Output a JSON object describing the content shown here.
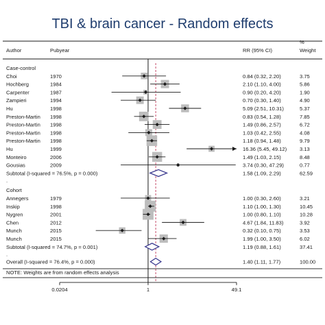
{
  "chart_data": {
    "type": "forest",
    "title": "TBI & brain cancer - Random effects",
    "headers": {
      "author": "Author",
      "pubyear": "Pubyear",
      "effect": "RR (95% CI)",
      "weight_top": "%",
      "weight": "Weight"
    },
    "x_scale": "log",
    "x_range": [
      0.0204,
      49.1
    ],
    "x_ticks": [
      "0.0204",
      "1",
      "49.1"
    ],
    "null_value": 1,
    "overall_value": 1.4,
    "groups": [
      {
        "label": "Case-control",
        "studies": [
          {
            "author": "Choi",
            "year": "1970",
            "rr": 0.84,
            "lo": 0.32,
            "hi": 2.2,
            "ci_text": "0.84 (0.32, 2.20)",
            "weight": "3.75"
          },
          {
            "author": "Hochberg",
            "year": "1984",
            "rr": 2.1,
            "lo": 1.1,
            "hi": 4.0,
            "ci_text": "2.10 (1.10, 4.00)",
            "weight": "5.86"
          },
          {
            "author": "Carpenter",
            "year": "1987",
            "rr": 0.9,
            "lo": 0.2,
            "hi": 4.2,
            "ci_text": "0.90 (0.20, 4.20)",
            "weight": "1.90"
          },
          {
            "author": "Zampieri",
            "year": "1994",
            "rr": 0.7,
            "lo": 0.3,
            "hi": 1.4,
            "ci_text": "0.70 (0.30, 1.40)",
            "weight": "4.90"
          },
          {
            "author": "Hu",
            "year": "1998",
            "rr": 5.09,
            "lo": 2.51,
            "hi": 10.31,
            "ci_text": "5.09 (2.51, 10.31)",
            "weight": "5.37"
          },
          {
            "author": "Preston-Martin",
            "year": "1998",
            "rr": 0.83,
            "lo": 0.54,
            "hi": 1.28,
            "ci_text": "0.83 (0.54, 1.28)",
            "weight": "7.85"
          },
          {
            "author": "Preston-Martin",
            "year": "1998",
            "rr": 1.49,
            "lo": 0.86,
            "hi": 2.57,
            "ci_text": "1.49 (0.86, 2.57)",
            "weight": "6.72"
          },
          {
            "author": "Preston-Martin",
            "year": "1998",
            "rr": 1.03,
            "lo": 0.42,
            "hi": 2.55,
            "ci_text": "1.03 (0.42, 2.55)",
            "weight": "4.08"
          },
          {
            "author": "Preston-Martin",
            "year": "1998",
            "rr": 1.18,
            "lo": 0.94,
            "hi": 1.48,
            "ci_text": "1.18 (0.94, 1.48)",
            "weight": "9.79"
          },
          {
            "author": "Hu",
            "year": "1999",
            "rr": 16.36,
            "lo": 5.45,
            "hi": 49.12,
            "ci_text": "16.36 (5.45, 49.12)",
            "weight": "3.13",
            "arrow": true
          },
          {
            "author": "Monteiro",
            "year": "2006",
            "rr": 1.49,
            "lo": 1.03,
            "hi": 2.15,
            "ci_text": "1.49 (1.03, 2.15)",
            "weight": "8.48"
          },
          {
            "author": "Gousias",
            "year": "2009",
            "rr": 3.74,
            "lo": 0.3,
            "hi": 47.29,
            "ci_text": "3.74 (0.30, 47.29)",
            "weight": "0.77"
          }
        ],
        "subtotal": {
          "label": "Subtotal  (I-squared = 76.5%, p = 0.000)",
          "rr": 1.58,
          "lo": 1.09,
          "hi": 2.29,
          "ci_text": "1.58 (1.09, 2.29)",
          "weight": "62.59"
        }
      },
      {
        "label": "Cohort",
        "studies": [
          {
            "author": "Annegers",
            "year": "1979",
            "rr": 1.0,
            "lo": 0.3,
            "hi": 2.6,
            "ci_text": "1.00 (0.30, 2.60)",
            "weight": "3.21"
          },
          {
            "author": "Inskip",
            "year": "1998",
            "rr": 1.1,
            "lo": 1.0,
            "hi": 1.3,
            "ci_text": "1.10 (1.00, 1.30)",
            "weight": "10.45"
          },
          {
            "author": "Nygren",
            "year": "2001",
            "rr": 1.0,
            "lo": 0.8,
            "hi": 1.1,
            "ci_text": "1.00 (0.80, 1.10)",
            "weight": "10.28"
          },
          {
            "author": "Chen",
            "year": "2012",
            "rr": 4.67,
            "lo": 1.84,
            "hi": 11.83,
            "ci_text": "4.67 (1.84, 11.83)",
            "weight": "3.92"
          },
          {
            "author": "Munch",
            "year": "2015",
            "rr": 0.32,
            "lo": 0.1,
            "hi": 0.75,
            "ci_text": "0.32 (0.10, 0.75)",
            "weight": "3.53"
          },
          {
            "author": "Munch",
            "year": "2015",
            "rr": 1.99,
            "lo": 1.0,
            "hi": 3.5,
            "ci_text": "1.99 (1.00, 3.50)",
            "weight": "6.02"
          }
        ],
        "subtotal": {
          "label": "Subtotal  (I-squared = 74.7%, p = 0.001)",
          "rr": 1.19,
          "lo": 0.88,
          "hi": 1.61,
          "ci_text": "1.19 (0.88, 1.61)",
          "weight": "37.41"
        }
      }
    ],
    "overall": {
      "label": "Overall  (I-squared = 76.4%, p = 0.000)",
      "rr": 1.4,
      "lo": 1.11,
      "hi": 1.77,
      "ci_text": "1.40 (1.11, 1.77)",
      "weight": "100.00"
    },
    "note": "NOTE: Weights are from random effects analysis",
    "colors": {
      "title": "#1f3d6e",
      "box": "#bdbdbd",
      "diamond": "#3b3a8f",
      "overall_line": "#c0395a",
      "line": "#1a1a1a"
    }
  }
}
